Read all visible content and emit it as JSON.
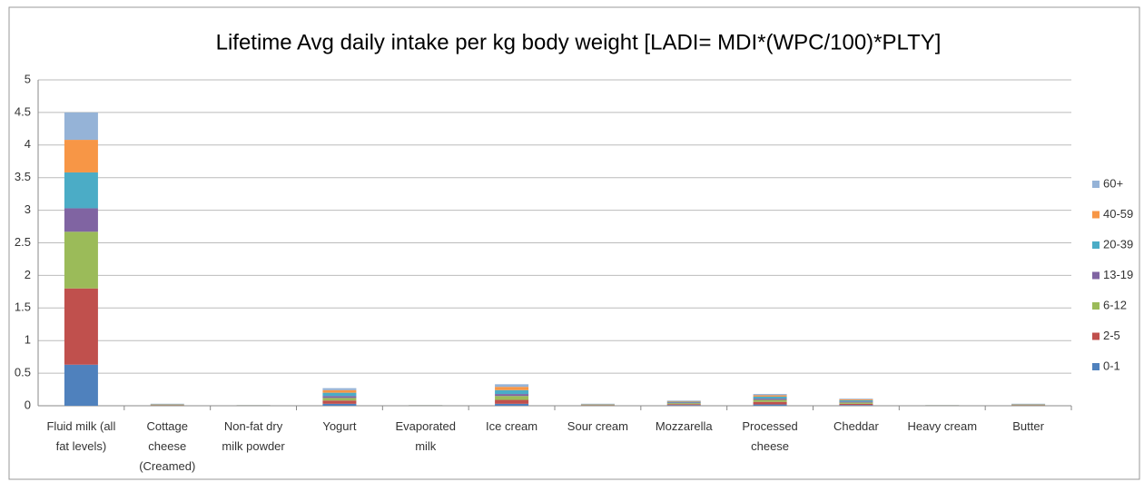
{
  "chart_data": {
    "type": "bar",
    "stacked": true,
    "title": "Lifetime Avg daily intake per kg body weight  [LADI= MDI*(WPC/100)*PLTY]",
    "categories": [
      "Fluid milk (all fat levels)",
      "Cottage cheese (Creamed)",
      "Non-fat dry milk powder",
      "Yogurt",
      "Evaporated milk",
      "Ice cream",
      "Sour cream",
      "Mozzarella",
      "Processed cheese",
      "Cheddar",
      "Heavy cream",
      "Butter"
    ],
    "series": [
      {
        "name": "0-1",
        "color": "#4f81bd",
        "values": [
          0.63,
          0.003,
          0.001,
          0.03,
          0.001,
          0.03,
          0.003,
          0.01,
          0.02,
          0.01,
          0.001,
          0.003
        ]
      },
      {
        "name": "2-5",
        "color": "#c0504d",
        "values": [
          1.17,
          0.005,
          0.002,
          0.05,
          0.002,
          0.06,
          0.005,
          0.015,
          0.04,
          0.02,
          0.002,
          0.005
        ]
      },
      {
        "name": "6-12",
        "color": "#9bbb59",
        "values": [
          0.87,
          0.005,
          0.002,
          0.04,
          0.002,
          0.06,
          0.005,
          0.015,
          0.03,
          0.02,
          0.002,
          0.005
        ]
      },
      {
        "name": "13-19",
        "color": "#8064a2",
        "values": [
          0.36,
          0.003,
          0.001,
          0.03,
          0.001,
          0.03,
          0.003,
          0.01,
          0.02,
          0.015,
          0.001,
          0.003
        ]
      },
      {
        "name": "20-39",
        "color": "#4bacc6",
        "values": [
          0.55,
          0.006,
          0.002,
          0.05,
          0.002,
          0.06,
          0.006,
          0.012,
          0.03,
          0.02,
          0.002,
          0.006
        ]
      },
      {
        "name": "40-59",
        "color": "#f79646",
        "values": [
          0.5,
          0.005,
          0.001,
          0.04,
          0.001,
          0.05,
          0.005,
          0.01,
          0.02,
          0.015,
          0.001,
          0.005
        ]
      },
      {
        "name": "60+",
        "color": "#95b3d7",
        "values": [
          0.42,
          0.004,
          0.001,
          0.03,
          0.001,
          0.04,
          0.004,
          0.008,
          0.02,
          0.01,
          0.001,
          0.004
        ]
      }
    ],
    "ylim": [
      0,
      5
    ],
    "yticks": [
      0,
      0.5,
      1,
      1.5,
      2,
      2.5,
      3,
      3.5,
      4,
      4.5,
      5
    ],
    "grid": true,
    "legend": "right"
  }
}
